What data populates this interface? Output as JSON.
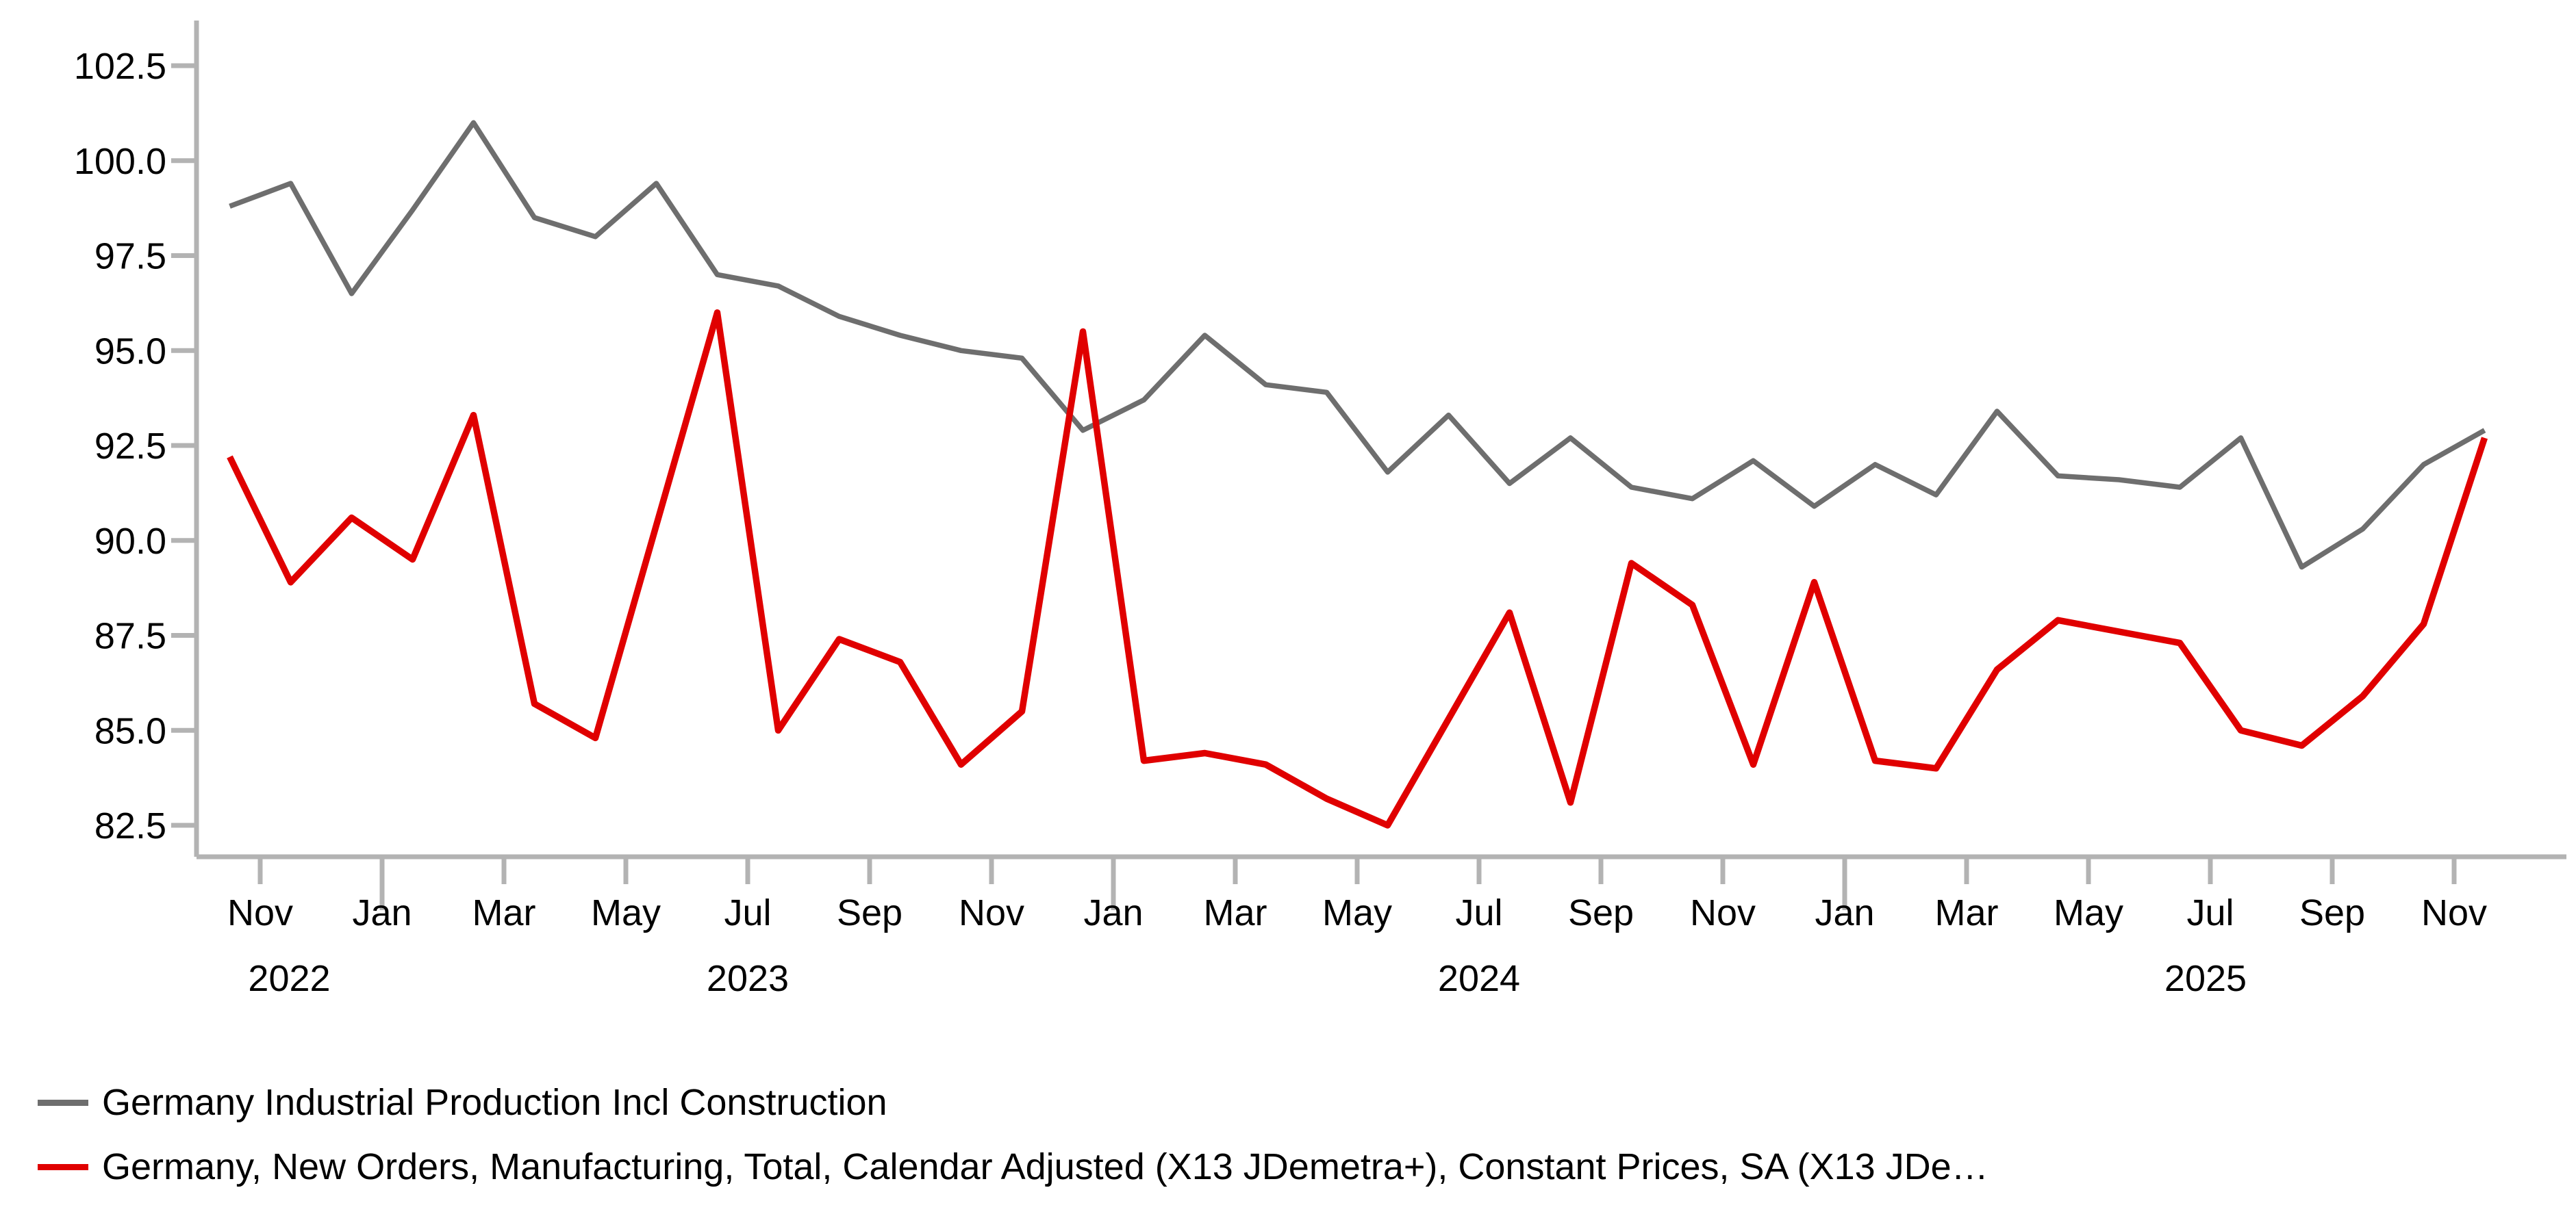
{
  "page": {
    "background": "#ffffff"
  },
  "legend": {
    "items": [
      {
        "label": "Germany Industrial Production Incl Construction",
        "color": "#6e6e6e"
      },
      {
        "label": "Germany, New Orders, Manufacturing, Total, Calendar Adjusted (X13 JDemetra+), Constant Prices, SA (X13 JDe…",
        "color": "#e00000"
      }
    ]
  },
  "chart_data": {
    "type": "line",
    "title": "",
    "xlabel": "",
    "ylabel": "",
    "grid": false,
    "legend_position": "bottom-left",
    "axis_color": "#b3b3b3",
    "text_color": "#000000",
    "x": [
      "2022-10",
      "2022-11",
      "2022-12",
      "2023-01",
      "2023-02",
      "2023-03",
      "2023-04",
      "2023-05",
      "2023-06",
      "2023-07",
      "2023-08",
      "2023-09",
      "2023-10",
      "2023-11",
      "2023-12",
      "2024-01",
      "2024-02",
      "2024-03",
      "2024-04",
      "2024-05",
      "2024-06",
      "2024-07",
      "2024-08",
      "2024-09",
      "2024-10",
      "2024-11",
      "2024-12",
      "2025-01",
      "2025-02",
      "2025-03",
      "2025-04",
      "2025-05",
      "2025-06",
      "2025-07",
      "2025-08",
      "2025-09",
      "2025-10",
      "2025-11"
    ],
    "series": [
      {
        "name": "Germany Industrial Production Incl Construction",
        "color": "#6e6e6e",
        "line_width": 7.5,
        "values": [
          98.8,
          99.4,
          96.5,
          98.7,
          101.0,
          98.5,
          98.0,
          99.4,
          97.0,
          96.7,
          95.9,
          95.4,
          95.0,
          94.8,
          92.9,
          93.7,
          95.4,
          94.1,
          93.9,
          91.8,
          93.3,
          91.5,
          92.7,
          91.4,
          91.1,
          92.1,
          90.9,
          92.0,
          91.2,
          93.4,
          91.7,
          91.6,
          91.4,
          92.7,
          89.3,
          90.3,
          92.0,
          92.9
        ]
      },
      {
        "name": "Germany, New Orders, Manufacturing, Total, Calendar Adjusted (X13 JDemetra+), Constant Prices, SA (X13 JDe…",
        "color": "#e00000",
        "line_width": 9.5,
        "values": [
          92.2,
          88.9,
          90.6,
          89.5,
          93.3,
          85.7,
          84.8,
          90.4,
          96.0,
          85.0,
          87.4,
          86.8,
          84.1,
          85.5,
          95.5,
          84.2,
          84.4,
          84.1,
          83.2,
          82.5,
          85.3,
          88.1,
          83.1,
          89.4,
          88.3,
          84.1,
          88.9,
          84.2,
          84.0,
          86.6,
          87.9,
          87.6,
          87.3,
          85.0,
          84.6,
          85.9,
          87.8,
          92.7
        ]
      }
    ],
    "ylim": [
      82.5,
      102.5
    ],
    "y_ticks": [
      102.5,
      100.0,
      97.5,
      95.0,
      92.5,
      90.0,
      87.5,
      85.0,
      82.5
    ],
    "y_tick_labels": [
      "102.5",
      "100.0",
      "97.5",
      "95.0",
      "92.5",
      "90.0",
      "87.5",
      "85.0",
      "82.5"
    ],
    "x_tick_month_labels": [
      "Nov",
      "Jan",
      "Mar",
      "May",
      "Jul",
      "Sep",
      "Nov",
      "Jan",
      "Mar",
      "May",
      "Jul",
      "Sep",
      "Nov",
      "Jan",
      "Mar",
      "May",
      "Jul",
      "Sep",
      "Nov"
    ],
    "x_tick_data_indices": [
      1,
      3,
      5,
      7,
      9,
      11,
      13,
      15,
      17,
      19,
      21,
      23,
      25,
      27,
      29,
      31,
      33,
      35,
      37
    ],
    "year_labels": [
      "2022",
      "2023",
      "2024",
      "2025"
    ]
  }
}
